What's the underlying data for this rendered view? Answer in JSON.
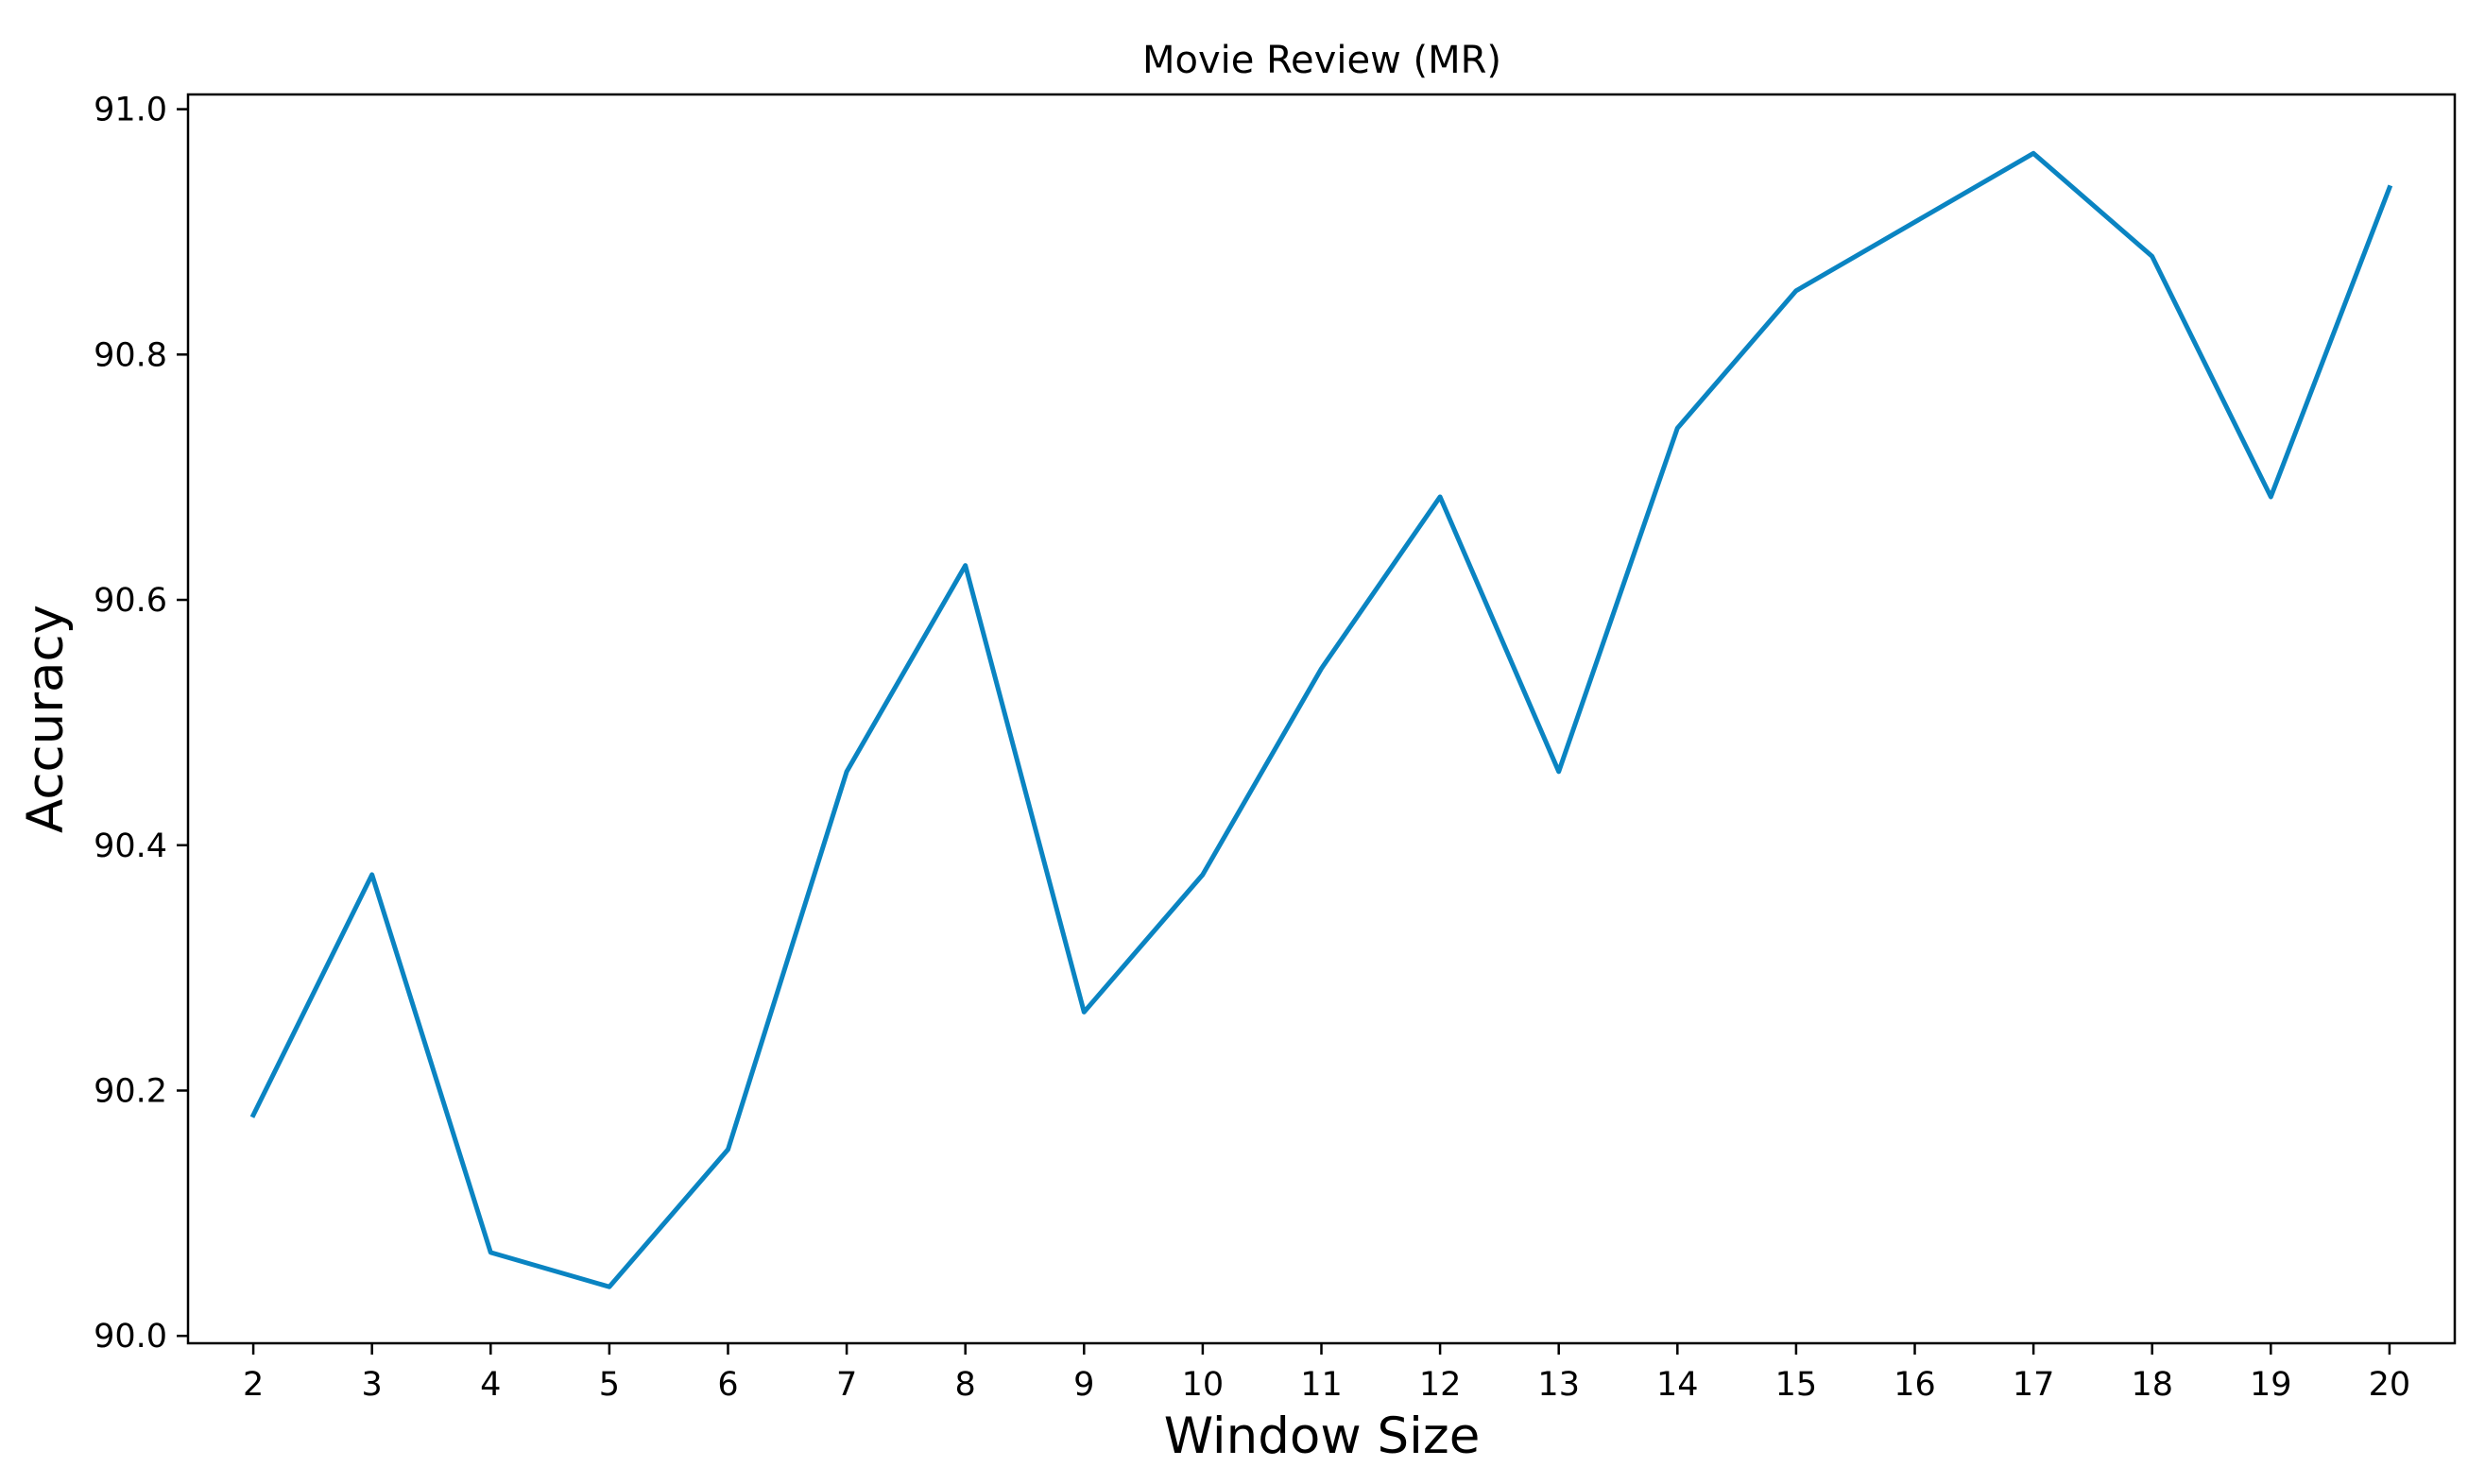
{
  "chart_data": {
    "type": "line",
    "title": "Movie Review (MR)",
    "xlabel": "Window Size",
    "ylabel": "Accuracy",
    "x": [
      2,
      3,
      4,
      5,
      6,
      7,
      8,
      9,
      10,
      11,
      12,
      13,
      14,
      15,
      16,
      17,
      18,
      19,
      20
    ],
    "x_tick_labels": [
      "2",
      "3",
      "4",
      "5",
      "6",
      "7",
      "8",
      "9",
      "10",
      "11",
      "12",
      "13",
      "14",
      "15",
      "16",
      "17",
      "18",
      "19",
      "20"
    ],
    "series": [
      {
        "color": "#0a84c2",
        "values": [
          90.18,
          90.376,
          90.068,
          90.04,
          90.152,
          90.46,
          90.628,
          90.264,
          90.376,
          90.544,
          90.684,
          90.46,
          90.74,
          90.852,
          90.908,
          90.964,
          90.88,
          90.684,
          90.936
        ]
      }
    ],
    "y_ticks": [
      90.0,
      90.2,
      90.4,
      90.6,
      90.8,
      91.0
    ],
    "y_tick_labels": [
      "90.0",
      "90.2",
      "90.4",
      "90.6",
      "90.8",
      "91.0"
    ],
    "xlim": [
      1.45,
      20.55
    ],
    "ylim": [
      89.994,
      91.012
    ],
    "grid": false,
    "legend": "none"
  }
}
